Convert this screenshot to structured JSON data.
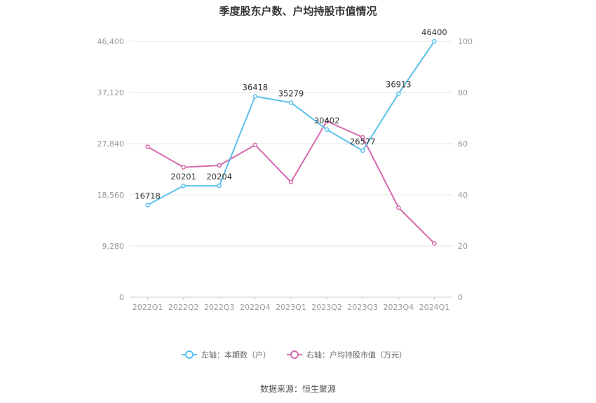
{
  "chart_data": {
    "type": "line",
    "title": "季度股东户数、户均持股市值情况",
    "categories": [
      "2022Q1",
      "2022Q2",
      "2022Q3",
      "2022Q4",
      "2023Q1",
      "2023Q2",
      "2023Q3",
      "2023Q4",
      "2024Q1"
    ],
    "left_axis": {
      "ylim": [
        0,
        46400
      ],
      "ticks": [
        "0",
        "9,280",
        "18,560",
        "27,840",
        "37,120",
        "46,400"
      ],
      "tick_values": [
        0,
        9280,
        18560,
        27840,
        37120,
        46400
      ]
    },
    "right_axis": {
      "ylim": [
        0,
        100
      ],
      "ticks": [
        "0",
        "20",
        "40",
        "60",
        "80",
        "100"
      ],
      "tick_values": [
        0,
        20,
        40,
        60,
        80,
        100
      ]
    },
    "grid": true,
    "legend_position": "bottom-center",
    "series": [
      {
        "name": "左轴：本期数（户）",
        "axis": "left",
        "color": "#5bc0eb",
        "values": [
          16718,
          20201,
          20204,
          36418,
          35279,
          30402,
          26577,
          36913,
          46400
        ],
        "labels": [
          "16718",
          "20201",
          "20204",
          "36418",
          "35279",
          "30402",
          "26577",
          "36913",
          "46400"
        ]
      },
      {
        "name": "右轴：户均持股市值（万元）",
        "axis": "right",
        "color": "#d46aad",
        "values": [
          58.8,
          50.8,
          51.5,
          59.5,
          45.0,
          68.8,
          62.5,
          35.0,
          21.0
        ]
      }
    ]
  },
  "source": "数据来源：恒生聚源"
}
